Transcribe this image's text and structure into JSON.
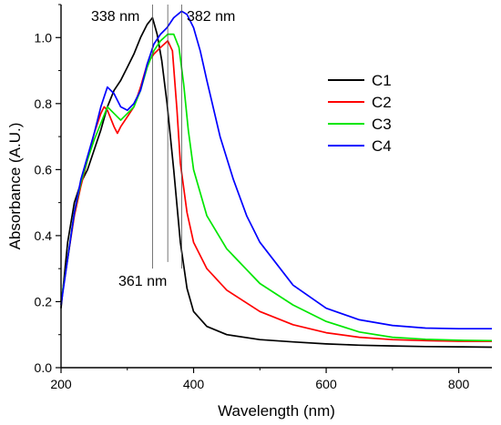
{
  "chart_data": {
    "type": "line",
    "xlabel": "Wavelength (nm)",
    "ylabel": "Absorbance (A.U.)",
    "xlim": [
      200,
      850
    ],
    "ylim": [
      0.0,
      1.1
    ],
    "xticks": [
      200,
      400,
      600,
      800
    ],
    "yticks": [
      0.0,
      0.2,
      0.4,
      0.6,
      0.8,
      1.0
    ],
    "xtick_labels": [
      "200",
      "400",
      "600",
      "800"
    ],
    "ytick_labels": [
      "0.0",
      "0.2",
      "0.4",
      "0.6",
      "0.8",
      "1.0"
    ],
    "legend_position": "top-right",
    "grid": false,
    "annotations": [
      {
        "text": "338 nm",
        "x": 338
      },
      {
        "text": "361 nm",
        "x": 361
      },
      {
        "text": "382 nm",
        "x": 382
      }
    ],
    "series": [
      {
        "name": "C1",
        "color": "#000000",
        "points": [
          [
            200,
            0.18
          ],
          [
            210,
            0.38
          ],
          [
            220,
            0.5
          ],
          [
            230,
            0.56
          ],
          [
            240,
            0.6
          ],
          [
            250,
            0.66
          ],
          [
            260,
            0.72
          ],
          [
            270,
            0.79
          ],
          [
            280,
            0.84
          ],
          [
            290,
            0.87
          ],
          [
            300,
            0.91
          ],
          [
            310,
            0.95
          ],
          [
            320,
            1.0
          ],
          [
            330,
            1.04
          ],
          [
            338,
            1.06
          ],
          [
            345,
            1.01
          ],
          [
            352,
            0.93
          ],
          [
            360,
            0.8
          ],
          [
            370,
            0.6
          ],
          [
            380,
            0.38
          ],
          [
            390,
            0.24
          ],
          [
            400,
            0.17
          ],
          [
            420,
            0.125
          ],
          [
            450,
            0.1
          ],
          [
            500,
            0.085
          ],
          [
            550,
            0.078
          ],
          [
            600,
            0.072
          ],
          [
            650,
            0.068
          ],
          [
            700,
            0.066
          ],
          [
            750,
            0.064
          ],
          [
            800,
            0.063
          ],
          [
            850,
            0.062
          ]
        ]
      },
      {
        "name": "C2",
        "color": "#ff0000",
        "points": [
          [
            200,
            0.2
          ],
          [
            210,
            0.33
          ],
          [
            220,
            0.46
          ],
          [
            230,
            0.55
          ],
          [
            240,
            0.63
          ],
          [
            250,
            0.71
          ],
          [
            260,
            0.77
          ],
          [
            265,
            0.79
          ],
          [
            270,
            0.78
          ],
          [
            280,
            0.73
          ],
          [
            285,
            0.71
          ],
          [
            290,
            0.73
          ],
          [
            300,
            0.76
          ],
          [
            310,
            0.79
          ],
          [
            320,
            0.85
          ],
          [
            330,
            0.92
          ],
          [
            340,
            0.95
          ],
          [
            350,
            0.97
          ],
          [
            361,
            0.99
          ],
          [
            368,
            0.96
          ],
          [
            375,
            0.78
          ],
          [
            380,
            0.62
          ],
          [
            390,
            0.47
          ],
          [
            400,
            0.38
          ],
          [
            420,
            0.3
          ],
          [
            450,
            0.235
          ],
          [
            500,
            0.17
          ],
          [
            550,
            0.13
          ],
          [
            600,
            0.106
          ],
          [
            650,
            0.092
          ],
          [
            700,
            0.085
          ],
          [
            750,
            0.082
          ],
          [
            800,
            0.08
          ],
          [
            850,
            0.08
          ]
        ]
      },
      {
        "name": "C3",
        "color": "#00e600",
        "points": [
          [
            200,
            0.2
          ],
          [
            210,
            0.33
          ],
          [
            220,
            0.47
          ],
          [
            230,
            0.56
          ],
          [
            240,
            0.63
          ],
          [
            250,
            0.69
          ],
          [
            260,
            0.74
          ],
          [
            270,
            0.79
          ],
          [
            280,
            0.77
          ],
          [
            290,
            0.75
          ],
          [
            300,
            0.77
          ],
          [
            310,
            0.79
          ],
          [
            320,
            0.84
          ],
          [
            330,
            0.91
          ],
          [
            340,
            0.96
          ],
          [
            350,
            0.99
          ],
          [
            361,
            1.01
          ],
          [
            370,
            1.01
          ],
          [
            378,
            0.97
          ],
          [
            385,
            0.86
          ],
          [
            392,
            0.72
          ],
          [
            400,
            0.6
          ],
          [
            420,
            0.46
          ],
          [
            450,
            0.36
          ],
          [
            500,
            0.255
          ],
          [
            550,
            0.19
          ],
          [
            600,
            0.14
          ],
          [
            650,
            0.108
          ],
          [
            700,
            0.092
          ],
          [
            750,
            0.086
          ],
          [
            800,
            0.083
          ],
          [
            850,
            0.082
          ]
        ]
      },
      {
        "name": "C4",
        "color": "#0000ff",
        "points": [
          [
            200,
            0.19
          ],
          [
            210,
            0.33
          ],
          [
            220,
            0.47
          ],
          [
            230,
            0.57
          ],
          [
            240,
            0.64
          ],
          [
            250,
            0.71
          ],
          [
            260,
            0.79
          ],
          [
            270,
            0.85
          ],
          [
            280,
            0.83
          ],
          [
            290,
            0.79
          ],
          [
            300,
            0.78
          ],
          [
            310,
            0.8
          ],
          [
            320,
            0.84
          ],
          [
            330,
            0.92
          ],
          [
            340,
            0.98
          ],
          [
            350,
            1.01
          ],
          [
            360,
            1.03
          ],
          [
            370,
            1.06
          ],
          [
            382,
            1.08
          ],
          [
            390,
            1.07
          ],
          [
            400,
            1.03
          ],
          [
            410,
            0.96
          ],
          [
            420,
            0.87
          ],
          [
            440,
            0.7
          ],
          [
            460,
            0.57
          ],
          [
            480,
            0.46
          ],
          [
            500,
            0.38
          ],
          [
            550,
            0.25
          ],
          [
            600,
            0.18
          ],
          [
            650,
            0.145
          ],
          [
            700,
            0.128
          ],
          [
            750,
            0.12
          ],
          [
            800,
            0.118
          ],
          [
            850,
            0.118
          ]
        ]
      }
    ]
  }
}
